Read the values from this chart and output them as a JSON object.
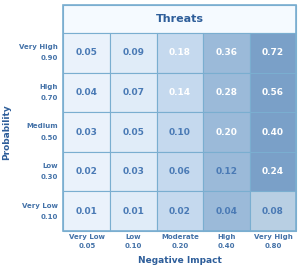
{
  "title": "Threats",
  "xlabel": "Negative Impact",
  "ylabel": "Probability",
  "matrix_values": [
    [
      0.05,
      0.09,
      0.18,
      0.36,
      0.72
    ],
    [
      0.04,
      0.07,
      0.14,
      0.28,
      0.56
    ],
    [
      0.03,
      0.05,
      0.1,
      0.2,
      0.4
    ],
    [
      0.02,
      0.03,
      0.06,
      0.12,
      0.24
    ],
    [
      0.01,
      0.01,
      0.02,
      0.04,
      0.08
    ]
  ],
  "row_labels": [
    [
      "Very High",
      "0.90"
    ],
    [
      "High",
      "0.70"
    ],
    [
      "Medium",
      "0.50"
    ],
    [
      "Low",
      "0.30"
    ],
    [
      "Very Low",
      "0.10"
    ]
  ],
  "col_labels": [
    [
      "Very Low",
      "0.05"
    ],
    [
      "Low",
      "0.10"
    ],
    [
      "Moderate",
      "0.20"
    ],
    [
      "High",
      "0.40"
    ],
    [
      "Very High",
      "0.80"
    ]
  ],
  "cell_colors": [
    [
      "#eaf2fb",
      "#e0ecf8",
      "#c5d9ee",
      "#9bbad9",
      "#7aa0c8"
    ],
    [
      "#eaf2fb",
      "#e0ecf8",
      "#c5d9ee",
      "#9bbad9",
      "#7aa0c8"
    ],
    [
      "#eaf2fb",
      "#e0ecf8",
      "#c5d9ee",
      "#9bbad9",
      "#7aa0c8"
    ],
    [
      "#eaf2fb",
      "#e0ecf8",
      "#c5d9ee",
      "#9bbad9",
      "#7aa0c8"
    ],
    [
      "#eaf2fb",
      "#e0ecf8",
      "#c5d9ee",
      "#9bbad9",
      "#b8cfe3"
    ]
  ],
  "header_color": "#f5faff",
  "text_color_light": "#4a7ab5",
  "text_color_dark": "#ffffff",
  "border_color": "#7aaed0",
  "title_color": "#2e5e9a",
  "label_color": "#4472a8",
  "background_color": "#ffffff",
  "dark_threshold": 0.14
}
